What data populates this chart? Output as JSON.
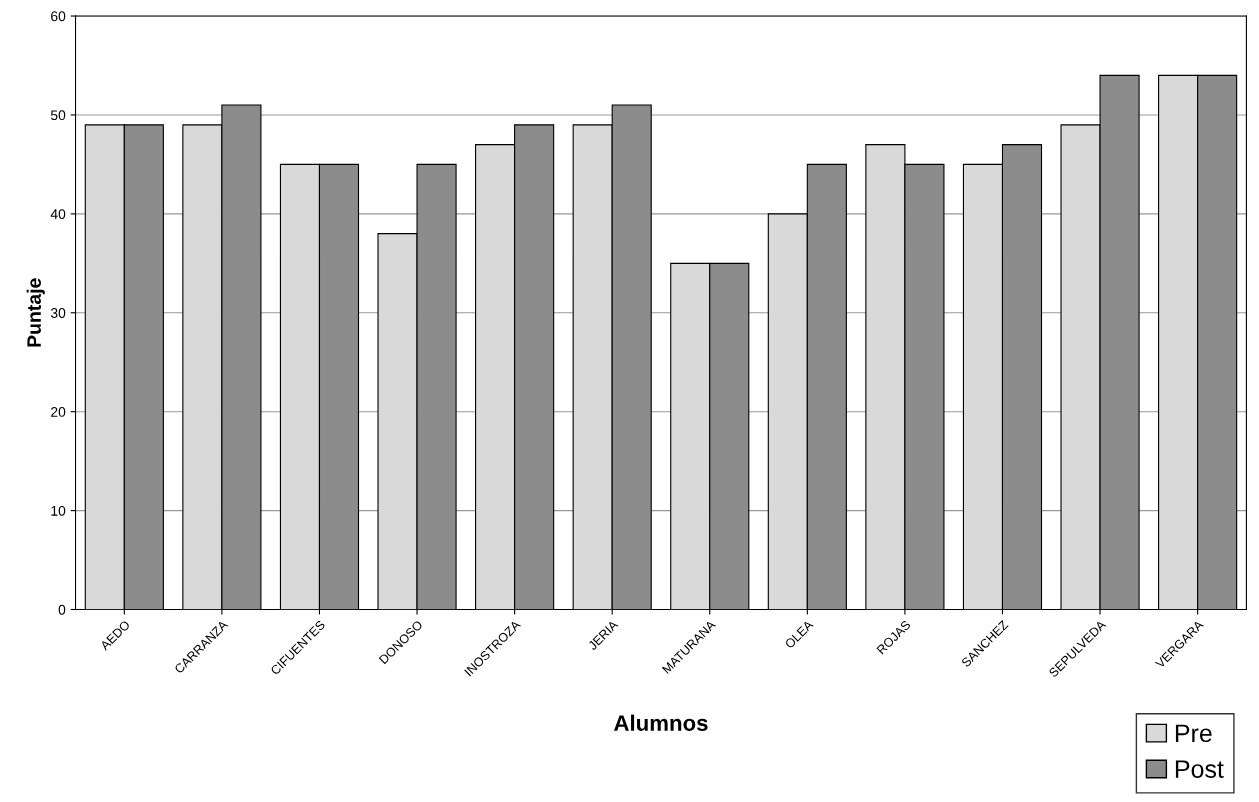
{
  "chart_data": {
    "type": "bar",
    "xlabel": "Alumnos",
    "ylabel": "Puntaje",
    "categories": [
      "AEDO",
      "CARRANZA",
      "CIFUENTES",
      "DONOSO",
      "INOSTROZA",
      "JERIA",
      "MATURANA",
      "OLEA",
      "ROJAS",
      "SANCHEZ",
      "SEPULVEDA",
      "VERGARA"
    ],
    "series": [
      {
        "name": "Pre",
        "color": "#d9d9d9",
        "values": [
          49,
          49,
          45,
          38,
          47,
          49,
          35,
          40,
          47,
          45,
          49,
          54
        ]
      },
      {
        "name": "Post",
        "color": "#8c8c8c",
        "values": [
          49,
          51,
          45,
          45,
          49,
          51,
          35,
          45,
          45,
          47,
          54,
          54
        ]
      }
    ],
    "ylim": [
      0,
      60
    ],
    "yticks": [
      0,
      10,
      20,
      30,
      40,
      50,
      60
    ],
    "grid": "y",
    "legend": "bottom right"
  }
}
